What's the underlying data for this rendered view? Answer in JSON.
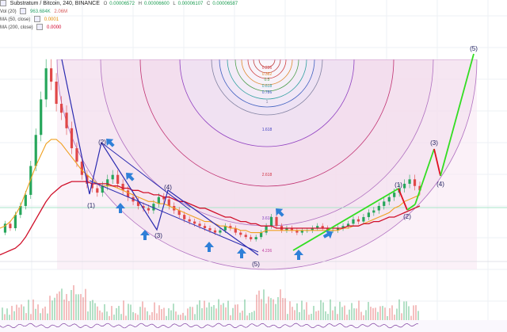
{
  "header": {
    "symbol_title": "Substratum / Bitcoin, 240, BINANCE",
    "ohlc": [
      {
        "key": "O",
        "value": "0.00006572"
      },
      {
        "key": "H",
        "value": "0.00006600"
      },
      {
        "key": "L",
        "value": "0.00006107"
      },
      {
        "key": "C",
        "value": "0.00006587"
      }
    ],
    "indicators": [
      {
        "name": "Vol (20)",
        "values": [
          "963.684K",
          "2.06M"
        ],
        "colors": [
          "#2ca36a",
          "#d65a5a"
        ]
      },
      {
        "name": "MA (50, close)",
        "values": [
          "0.0001"
        ],
        "colors": [
          "#e08a00"
        ]
      },
      {
        "name": "MA (200, close)",
        "values": [
          "0.0000"
        ],
        "colors": [
          "#d0002a"
        ]
      }
    ]
  },
  "colors": {
    "up_candle": "#26a65b",
    "down_candle": "#e04848",
    "ma50": "#f0a020",
    "ma200": "#d0102a",
    "wave_line": "#2b2bb0",
    "projection_up": "#33dd22",
    "projection_down": "#e01020",
    "arrow": "#2f80d8",
    "arc_fill": "#f7e6f2",
    "arc_stroke": "#b070c0",
    "guide_line": "#a8e6c8"
  },
  "fib_levels": [
    {
      "label": "0.236",
      "color": "#d04040"
    },
    {
      "label": "0.382",
      "color": "#e08a30"
    },
    {
      "label": "0.5",
      "color": "#50a050"
    },
    {
      "label": "0.618",
      "color": "#30a0a0"
    },
    {
      "label": "0.786",
      "color": "#4060c0"
    },
    {
      "label": "1",
      "color": "#8080a0"
    },
    {
      "label": "1.618",
      "color": "#4040c0"
    },
    {
      "label": "2.618",
      "color": "#d03040"
    },
    {
      "label": "3.618",
      "color": "#8040c0"
    },
    {
      "label": "4.236",
      "color": "#c040a0"
    }
  ],
  "wave_labels": [
    "(1)",
    "(2)",
    "(3)",
    "(4)",
    "(5)",
    "(1)",
    "(2)",
    "(3)",
    "(4)",
    "(5)"
  ],
  "chart_data": {
    "type": "candlestick",
    "title": "Substratum / Bitcoin, 240, BINANCE",
    "timeframe": "240",
    "exchange": "BINANCE",
    "price_range_estimate": [
      1.5e-05,
      0.00011
    ],
    "close_price_path": [
      2.8e-05,
      3.2e-05,
      3e-05,
      3.6e-05,
      4e-05,
      4.5e-05,
      5.8e-05,
      7.2e-05,
      8.8e-05,
      0.000102,
      9.6e-05,
      8.6e-05,
      8.2e-05,
      7.5e-05,
      6.6e-05,
      6e-05,
      5.4e-05,
      5e-05,
      4.8e-05,
      4.6e-05,
      4.9e-05,
      5.2e-05,
      5.4e-05,
      5e-05,
      4.7e-05,
      4.4e-05,
      4.2e-05,
      4e-05,
      3.9e-05,
      3.8e-05,
      4.1e-05,
      4.4e-05,
      4.3e-05,
      4e-05,
      3.8e-05,
      3.6e-05,
      3.4e-05,
      3.3e-05,
      3.2e-05,
      3.1e-05,
      3e-05,
      2.9e-05,
      2.8e-05,
      2.9e-05,
      3.1e-05,
      3e-05,
      2.8e-05,
      2.7e-05,
      2.6e-05,
      2.5e-05,
      2.6e-05,
      2.8e-05,
      3.1e-05,
      3.5e-05,
      3.1e-05,
      2.9e-05,
      3e-05,
      2.9e-05,
      2.8e-05,
      2.9e-05,
      2.9e-05,
      3e-05,
      3.1e-05,
      3e-05,
      2.9e-05,
      2.9e-05,
      3e-05,
      3.1e-05,
      3.2e-05,
      3.4e-05,
      3.3e-05,
      3.5e-05,
      3.7e-05,
      3.8e-05,
      4e-05,
      4.2e-05,
      4.4e-05,
      4.6e-05,
      4.8e-05,
      5e-05,
      5.2e-05,
      4.9e-05,
      4.7e-05
    ],
    "ma50_path": [
      3e-05,
      3.1e-05,
      3.3e-05,
      3.6e-05,
      4e-05,
      4.6e-05,
      5.2e-05,
      5.8e-05,
      6.3e-05,
      6.8e-05,
      7e-05,
      7e-05,
      6.8e-05,
      6.5e-05,
      6.2e-05,
      5.9e-05,
      5.6e-05,
      5.4e-05,
      5.2e-05,
      5e-05,
      4.9e-05,
      4.9e-05,
      4.9e-05,
      4.8e-05,
      4.7e-05,
      4.6e-05,
      4.5e-05,
      4.4e-05,
      4.3e-05,
      4.2e-05,
      4.2e-05,
      4.1e-05,
      4.1e-05,
      4e-05,
      3.9e-05,
      3.8e-05,
      3.7e-05,
      3.6e-05,
      3.5e-05,
      3.4e-05,
      3.3e-05,
      3.3e-05,
      3.2e-05,
      3.1e-05,
      3.1e-05,
      3e-05,
      3e-05,
      2.9e-05,
      2.9e-05,
      2.8e-05,
      2.8e-05,
      2.8e-05,
      2.9e-05,
      2.9e-05,
      2.9e-05,
      2.9e-05,
      2.9e-05,
      2.9e-05,
      2.9e-05,
      2.9e-05,
      2.9e-05,
      2.9e-05,
      2.9e-05,
      2.9e-05,
      2.9e-05,
      2.9e-05,
      2.9e-05,
      3e-05,
      3e-05,
      3.1e-05,
      3.1e-05,
      3.2e-05,
      3.3e-05,
      3.4e-05,
      3.5e-05,
      3.6e-05,
      3.7e-05,
      3.9e-05,
      4e-05,
      4.2e-05,
      4.3e-05,
      4.4e-05,
      4.5e-05
    ],
    "ma200_path": [
      1.8e-05,
      1.9e-05,
      2e-05,
      2.1e-05,
      2.3e-05,
      2.6e-05,
      3e-05,
      3.4e-05,
      3.8e-05,
      4.2e-05,
      4.5e-05,
      4.7e-05,
      4.9e-05,
      5e-05,
      5.1e-05,
      5.1e-05,
      5.1e-05,
      5.1e-05,
      5e-05,
      5e-05,
      5e-05,
      5e-05,
      4.9e-05,
      4.9e-05,
      4.8e-05,
      4.8e-05,
      4.7e-05,
      4.7e-05,
      4.6e-05,
      4.6e-05,
      4.5e-05,
      4.5e-05,
      4.4e-05,
      4.4e-05,
      4.3e-05,
      4.2e-05,
      4.2e-05,
      4.1e-05,
      4e-05,
      3.9e-05,
      3.9e-05,
      3.8e-05,
      3.7e-05,
      3.6e-05,
      3.5e-05,
      3.5e-05,
      3.4e-05,
      3.3e-05,
      3.3e-05,
      3.2e-05,
      3.2e-05,
      3.1e-05,
      3.1e-05,
      3.1e-05,
      3e-05,
      3e-05,
      3e-05,
      3e-05,
      3e-05,
      3e-05,
      3e-05,
      3e-05,
      3e-05,
      3e-05,
      3e-05,
      3e-05,
      3e-05,
      3e-05,
      3.1e-05,
      3.1e-05,
      3.1e-05,
      3.2e-05,
      3.2e-05,
      3.3e-05,
      3.3e-05,
      3.4e-05,
      3.5e-05,
      3.5e-05,
      3.6e-05,
      3.7e-05,
      3.8e-05,
      3.9e-05,
      4e-05
    ],
    "elliott_wave_path": [
      0.000102,
      4.6e-05,
      5.5e-05,
      3.3e-05,
      4.7e-05,
      2.5e-05
    ],
    "projection_path": [
      2.5e-05,
      4.8e-05,
      5.3e-05,
      4.4e-05,
      6.8e-05,
      5.8e-05,
      9.8e-05
    ]
  }
}
